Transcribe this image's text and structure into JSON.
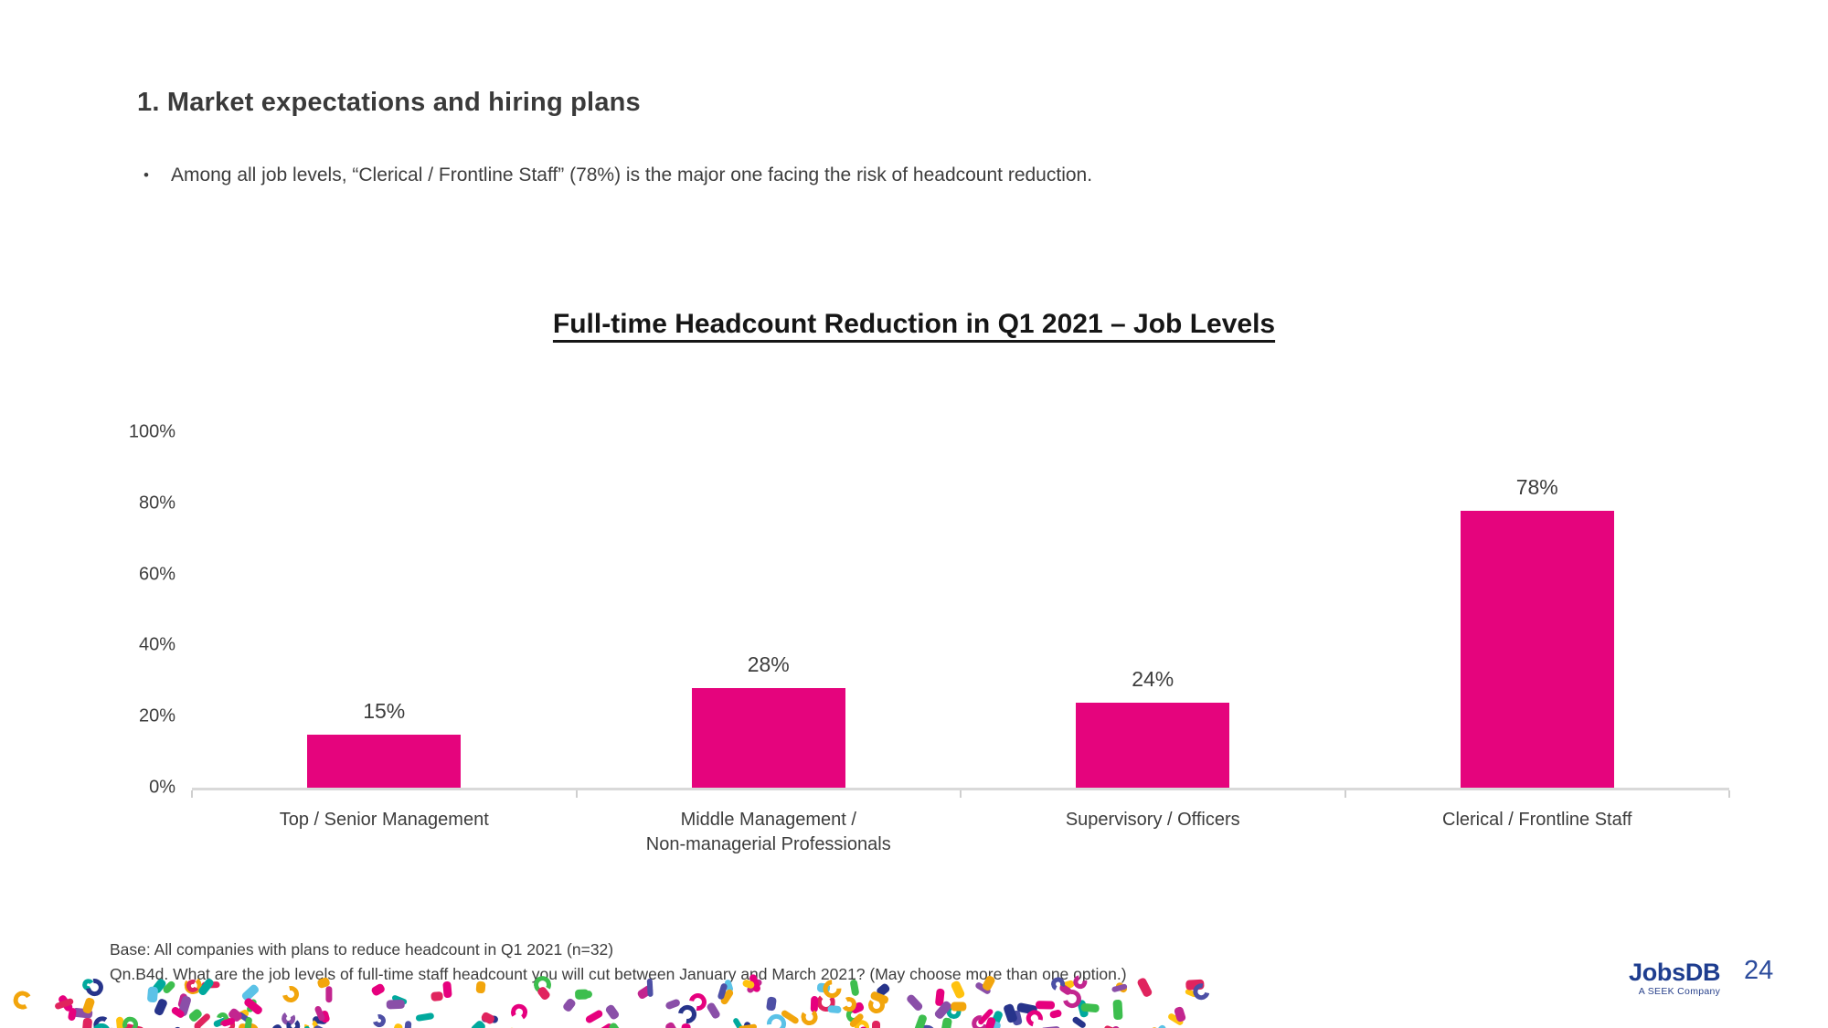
{
  "page": {
    "heading": "1. Market expectations and hiring plans",
    "bullet_marker": "•",
    "bullet": "Among all job levels, “Clerical / Frontline Staff” (78%) is the major one facing the risk of headcount reduction.",
    "page_number": "24"
  },
  "chart_data": {
    "type": "bar",
    "title": "Full-time Headcount Reduction in Q1 2021 – Job Levels",
    "categories": [
      [
        "Top / Senior Management"
      ],
      [
        "Middle Management /",
        "Non-managerial Professionals"
      ],
      [
        "Supervisory / Officers"
      ],
      [
        "Clerical / Frontline Staff"
      ]
    ],
    "values": [
      15,
      28,
      24,
      78
    ],
    "value_labels": [
      "15%",
      "28%",
      "24%",
      "78%"
    ],
    "xlabel": "",
    "ylabel": "",
    "ylim": [
      0,
      100
    ],
    "yticks": [
      {
        "value": 100,
        "label": "100%"
      },
      {
        "value": 80,
        "label": "80%"
      },
      {
        "value": 60,
        "label": "60%"
      },
      {
        "value": 40,
        "label": "40%"
      },
      {
        "value": 20,
        "label": "20%"
      },
      {
        "value": 0,
        "label": "0%"
      }
    ],
    "grid": false,
    "legend": null,
    "bar_color": "#e5047d",
    "axis_line_color": "#d9d9d9"
  },
  "footer": {
    "base_note": "Base: All companies with plans to reduce headcount in Q1 2021 (n=32)",
    "question_note": "Qn.B4d. What are the job levels of full-time staff headcount you will cut between January and March 2021? (May choose more than one option.)"
  },
  "branding": {
    "logo_text": "JobsDB",
    "logo_tagline": "A SEEK Company",
    "logo_color": "#1e3d8f"
  },
  "decoration": {
    "confetti_colors": [
      "#e6007e",
      "#e0245e",
      "#ffc20e",
      "#f2a50c",
      "#00a99d",
      "#3dbe4e",
      "#5bc2e7",
      "#8a4fa8",
      "#4d4fa5",
      "#27348b",
      "#c2258f"
    ],
    "confetti_count": 170
  }
}
